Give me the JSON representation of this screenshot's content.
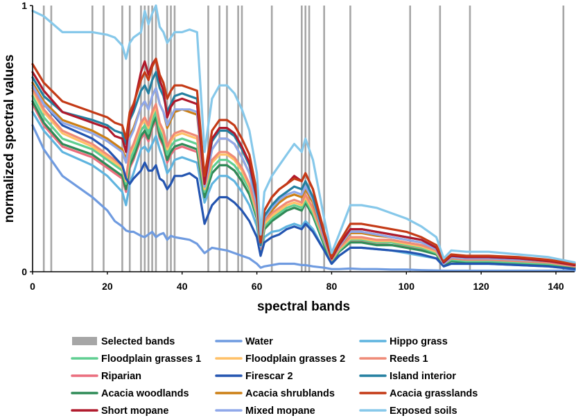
{
  "chart_data": {
    "type": "line",
    "title": "",
    "xlabel": "spectral bands",
    "ylabel": "normalized spectral values",
    "xlim": [
      0,
      145
    ],
    "ylim": [
      0,
      1
    ],
    "x_ticks": [
      0,
      20,
      40,
      60,
      80,
      100,
      120,
      140
    ],
    "y_ticks": [
      0,
      1
    ],
    "grid": false,
    "legend_position": "bottom",
    "selected_bands_label": "Selected bands",
    "selected_bands_color": "#a6a6a6",
    "selected_bands": [
      3,
      5,
      16,
      19,
      24,
      26,
      29,
      30,
      31,
      32,
      33,
      36,
      37,
      38,
      47,
      50,
      52,
      55,
      56,
      64,
      72,
      73,
      74,
      78,
      85,
      101,
      109,
      117,
      142
    ],
    "anchor_x": [
      0,
      3,
      8,
      16,
      20,
      22,
      24,
      25,
      26,
      27,
      29,
      30,
      31,
      32,
      33,
      34,
      35,
      36,
      37,
      38,
      40,
      42,
      44,
      46,
      48,
      50,
      52,
      54,
      56,
      58,
      60,
      61,
      62,
      64,
      66,
      68,
      70,
      72,
      73,
      75,
      78,
      80,
      82,
      85,
      88,
      92,
      96,
      100,
      104,
      108,
      110,
      112,
      116,
      122,
      130,
      138,
      145
    ],
    "series": [
      {
        "name": "Water",
        "color": "#6f9be0",
        "values": [
          0.55,
          0.46,
          0.36,
          0.28,
          0.23,
          0.19,
          0.17,
          0.155,
          0.15,
          0.15,
          0.135,
          0.13,
          0.14,
          0.15,
          0.13,
          0.14,
          0.145,
          0.12,
          0.135,
          0.13,
          0.125,
          0.12,
          0.105,
          0.07,
          0.09,
          0.085,
          0.08,
          0.07,
          0.06,
          0.05,
          0.03,
          0.015,
          0.02,
          0.025,
          0.03,
          0.03,
          0.03,
          0.025,
          0.025,
          0.02,
          0.015,
          0.01,
          0.01,
          0.012,
          0.01,
          0.01,
          0.008,
          0.008,
          0.006,
          0.005,
          0.004,
          0.004,
          0.004,
          0.004,
          0.004,
          0.004,
          0.004
        ]
      },
      {
        "name": "Hippo grass",
        "color": "#5fb4df",
        "values": [
          0.6,
          0.53,
          0.45,
          0.4,
          0.36,
          0.33,
          0.3,
          0.25,
          0.33,
          0.37,
          0.46,
          0.47,
          0.45,
          0.48,
          0.51,
          0.46,
          0.42,
          0.37,
          0.39,
          0.42,
          0.43,
          0.42,
          0.41,
          0.26,
          0.33,
          0.36,
          0.36,
          0.34,
          0.3,
          0.25,
          0.17,
          0.07,
          0.13,
          0.15,
          0.155,
          0.17,
          0.18,
          0.17,
          0.19,
          0.16,
          0.08,
          0.03,
          0.06,
          0.09,
          0.09,
          0.085,
          0.08,
          0.07,
          0.06,
          0.05,
          0.02,
          0.03,
          0.03,
          0.03,
          0.025,
          0.02,
          0.01
        ]
      },
      {
        "name": "Floodplain grasses 1",
        "color": "#5fce91",
        "values": [
          0.66,
          0.58,
          0.5,
          0.46,
          0.42,
          0.4,
          0.38,
          0.33,
          0.42,
          0.45,
          0.53,
          0.55,
          0.52,
          0.57,
          0.6,
          0.53,
          0.5,
          0.44,
          0.47,
          0.49,
          0.5,
          0.49,
          0.48,
          0.3,
          0.39,
          0.42,
          0.42,
          0.4,
          0.36,
          0.31,
          0.21,
          0.08,
          0.17,
          0.2,
          0.22,
          0.24,
          0.25,
          0.24,
          0.27,
          0.22,
          0.11,
          0.04,
          0.08,
          0.12,
          0.12,
          0.11,
          0.11,
          0.1,
          0.09,
          0.07,
          0.03,
          0.045,
          0.04,
          0.04,
          0.035,
          0.03,
          0.02
        ]
      },
      {
        "name": "Floodplain grasses 2",
        "color": "#ffc067",
        "values": [
          0.68,
          0.6,
          0.52,
          0.47,
          0.43,
          0.41,
          0.39,
          0.34,
          0.44,
          0.47,
          0.55,
          0.57,
          0.54,
          0.59,
          0.62,
          0.55,
          0.52,
          0.46,
          0.49,
          0.51,
          0.52,
          0.51,
          0.5,
          0.31,
          0.41,
          0.44,
          0.44,
          0.42,
          0.38,
          0.32,
          0.22,
          0.085,
          0.18,
          0.21,
          0.23,
          0.25,
          0.26,
          0.25,
          0.28,
          0.23,
          0.12,
          0.045,
          0.085,
          0.125,
          0.125,
          0.115,
          0.115,
          0.105,
          0.095,
          0.075,
          0.03,
          0.05,
          0.045,
          0.045,
          0.04,
          0.035,
          0.02
        ]
      },
      {
        "name": "Reeds 1",
        "color": "#ef8a77",
        "values": [
          0.69,
          0.61,
          0.53,
          0.48,
          0.44,
          0.42,
          0.4,
          0.35,
          0.45,
          0.48,
          0.56,
          0.58,
          0.55,
          0.6,
          0.63,
          0.56,
          0.53,
          0.47,
          0.5,
          0.52,
          0.53,
          0.52,
          0.51,
          0.32,
          0.42,
          0.45,
          0.45,
          0.43,
          0.39,
          0.33,
          0.23,
          0.09,
          0.19,
          0.22,
          0.24,
          0.26,
          0.27,
          0.26,
          0.29,
          0.24,
          0.12,
          0.045,
          0.09,
          0.13,
          0.13,
          0.12,
          0.12,
          0.11,
          0.1,
          0.08,
          0.03,
          0.05,
          0.045,
          0.045,
          0.04,
          0.035,
          0.02
        ]
      },
      {
        "name": "Riparian",
        "color": "#ea6d7d",
        "values": [
          0.63,
          0.55,
          0.47,
          0.43,
          0.39,
          0.37,
          0.35,
          0.3,
          0.39,
          0.42,
          0.5,
          0.52,
          0.49,
          0.54,
          0.57,
          0.5,
          0.47,
          0.41,
          0.44,
          0.46,
          0.47,
          0.46,
          0.45,
          0.28,
          0.37,
          0.4,
          0.4,
          0.38,
          0.34,
          0.29,
          0.2,
          0.075,
          0.16,
          0.19,
          0.21,
          0.23,
          0.24,
          0.23,
          0.26,
          0.21,
          0.1,
          0.04,
          0.075,
          0.115,
          0.115,
          0.105,
          0.1,
          0.095,
          0.085,
          0.065,
          0.025,
          0.04,
          0.04,
          0.04,
          0.035,
          0.03,
          0.02
        ]
      },
      {
        "name": "Firescar 2",
        "color": "#2354b0",
        "values": [
          0.7,
          0.63,
          0.55,
          0.5,
          0.46,
          0.43,
          0.4,
          0.35,
          0.33,
          0.35,
          0.38,
          0.41,
          0.38,
          0.38,
          0.4,
          0.35,
          0.34,
          0.31,
          0.33,
          0.36,
          0.36,
          0.37,
          0.35,
          0.18,
          0.25,
          0.28,
          0.28,
          0.26,
          0.23,
          0.19,
          0.13,
          0.06,
          0.11,
          0.13,
          0.14,
          0.16,
          0.17,
          0.16,
          0.18,
          0.15,
          0.08,
          0.03,
          0.06,
          0.09,
          0.09,
          0.085,
          0.08,
          0.075,
          0.065,
          0.05,
          0.02,
          0.03,
          0.03,
          0.03,
          0.025,
          0.02,
          0.01
        ]
      },
      {
        "name": "Island interior",
        "color": "#237fa0",
        "values": [
          0.73,
          0.66,
          0.6,
          0.57,
          0.55,
          0.53,
          0.52,
          0.48,
          0.57,
          0.6,
          0.68,
          0.7,
          0.67,
          0.72,
          0.75,
          0.69,
          0.66,
          0.6,
          0.63,
          0.66,
          0.67,
          0.66,
          0.65,
          0.34,
          0.49,
          0.53,
          0.53,
          0.51,
          0.46,
          0.4,
          0.27,
          0.1,
          0.21,
          0.25,
          0.28,
          0.3,
          0.32,
          0.31,
          0.34,
          0.28,
          0.14,
          0.05,
          0.1,
          0.16,
          0.16,
          0.15,
          0.14,
          0.13,
          0.12,
          0.09,
          0.035,
          0.06,
          0.055,
          0.055,
          0.05,
          0.04,
          0.025
        ]
      },
      {
        "name": "Acacia woodlands",
        "color": "#2e8b57",
        "values": [
          0.64,
          0.56,
          0.48,
          0.44,
          0.4,
          0.38,
          0.36,
          0.31,
          0.4,
          0.43,
          0.51,
          0.53,
          0.5,
          0.55,
          0.58,
          0.51,
          0.48,
          0.42,
          0.45,
          0.47,
          0.48,
          0.47,
          0.46,
          0.28,
          0.37,
          0.4,
          0.4,
          0.38,
          0.34,
          0.29,
          0.2,
          0.075,
          0.16,
          0.19,
          0.21,
          0.23,
          0.24,
          0.23,
          0.26,
          0.21,
          0.1,
          0.035,
          0.075,
          0.11,
          0.11,
          0.1,
          0.1,
          0.09,
          0.08,
          0.065,
          0.025,
          0.04,
          0.035,
          0.035,
          0.03,
          0.025,
          0.015
        ]
      },
      {
        "name": "Acacia shrublands",
        "color": "#cc7f15",
        "values": [
          0.71,
          0.64,
          0.57,
          0.53,
          0.5,
          0.48,
          0.46,
          0.42,
          0.51,
          0.54,
          0.62,
          0.64,
          0.61,
          0.66,
          0.69,
          0.63,
          0.6,
          0.54,
          0.57,
          0.6,
          0.61,
          0.6,
          0.59,
          0.32,
          0.46,
          0.5,
          0.5,
          0.48,
          0.43,
          0.37,
          0.25,
          0.095,
          0.2,
          0.23,
          0.26,
          0.28,
          0.29,
          0.28,
          0.31,
          0.26,
          0.13,
          0.05,
          0.095,
          0.145,
          0.145,
          0.135,
          0.13,
          0.12,
          0.11,
          0.085,
          0.03,
          0.055,
          0.05,
          0.05,
          0.045,
          0.04,
          0.025
        ]
      },
      {
        "name": "Acacia grasslands",
        "color": "#c43a16",
        "values": [
          0.78,
          0.71,
          0.64,
          0.6,
          0.58,
          0.56,
          0.55,
          0.5,
          0.6,
          0.63,
          0.72,
          0.75,
          0.72,
          0.77,
          0.8,
          0.74,
          0.71,
          0.65,
          0.68,
          0.7,
          0.7,
          0.69,
          0.68,
          0.36,
          0.53,
          0.57,
          0.57,
          0.55,
          0.5,
          0.44,
          0.3,
          0.11,
          0.23,
          0.28,
          0.31,
          0.33,
          0.35,
          0.34,
          0.37,
          0.31,
          0.15,
          0.055,
          0.11,
          0.18,
          0.18,
          0.17,
          0.16,
          0.15,
          0.13,
          0.1,
          0.04,
          0.065,
          0.06,
          0.06,
          0.055,
          0.045,
          0.03
        ]
      },
      {
        "name": "Short mopane",
        "color": "#b0192b",
        "values": [
          0.75,
          0.68,
          0.6,
          0.56,
          0.54,
          0.51,
          0.5,
          0.45,
          0.58,
          0.62,
          0.75,
          0.79,
          0.74,
          0.78,
          0.8,
          0.72,
          0.68,
          0.58,
          0.62,
          0.64,
          0.65,
          0.64,
          0.63,
          0.33,
          0.5,
          0.54,
          0.54,
          0.52,
          0.47,
          0.41,
          0.28,
          0.11,
          0.23,
          0.28,
          0.31,
          0.33,
          0.36,
          0.34,
          0.37,
          0.31,
          0.14,
          0.05,
          0.1,
          0.16,
          0.16,
          0.15,
          0.14,
          0.13,
          0.12,
          0.09,
          0.035,
          0.06,
          0.055,
          0.055,
          0.05,
          0.04,
          0.025
        ]
      },
      {
        "name": "Mixed mopane",
        "color": "#8fa8ea",
        "values": [
          0.7,
          0.63,
          0.56,
          0.52,
          0.49,
          0.47,
          0.45,
          0.41,
          0.5,
          0.53,
          0.62,
          0.64,
          0.61,
          0.66,
          0.69,
          0.63,
          0.6,
          0.55,
          0.58,
          0.61,
          0.61,
          0.61,
          0.6,
          0.32,
          0.46,
          0.5,
          0.5,
          0.48,
          0.43,
          0.37,
          0.25,
          0.095,
          0.2,
          0.24,
          0.27,
          0.29,
          0.3,
          0.29,
          0.32,
          0.27,
          0.13,
          0.05,
          0.095,
          0.15,
          0.15,
          0.14,
          0.13,
          0.12,
          0.11,
          0.085,
          0.03,
          0.055,
          0.05,
          0.05,
          0.045,
          0.04,
          0.025
        ]
      },
      {
        "name": "Exposed soils",
        "color": "#86c8ea",
        "values": [
          0.98,
          0.96,
          0.9,
          0.9,
          0.89,
          0.88,
          0.85,
          0.8,
          0.86,
          0.88,
          0.9,
          0.98,
          0.93,
          0.97,
          1.0,
          0.92,
          0.9,
          0.86,
          0.88,
          0.9,
          0.9,
          0.91,
          0.9,
          0.45,
          0.65,
          0.7,
          0.7,
          0.67,
          0.61,
          0.53,
          0.37,
          0.14,
          0.3,
          0.36,
          0.4,
          0.44,
          0.48,
          0.45,
          0.5,
          0.42,
          0.2,
          0.07,
          0.14,
          0.25,
          0.25,
          0.24,
          0.22,
          0.2,
          0.17,
          0.13,
          0.05,
          0.08,
          0.075,
          0.075,
          0.065,
          0.055,
          0.035
        ]
      }
    ]
  }
}
